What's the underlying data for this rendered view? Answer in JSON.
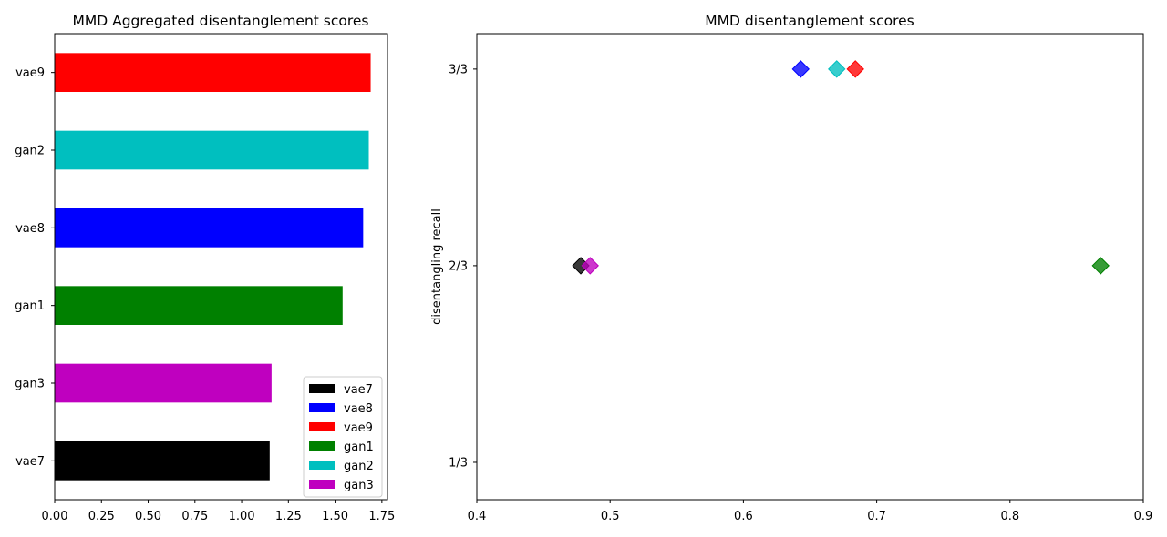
{
  "chart_data": [
    {
      "type": "bar",
      "orientation": "horizontal",
      "title": "MMD Aggregated disentanglement scores",
      "xlabel": "",
      "ylabel": "",
      "categories": [
        "vae7",
        "gan3",
        "gan1",
        "vae8",
        "gan2",
        "vae9"
      ],
      "values": [
        1.15,
        1.16,
        1.54,
        1.65,
        1.68,
        1.69
      ],
      "colors": [
        "#000000",
        "#bf00bf",
        "#008000",
        "#0000ff",
        "#00bfbf",
        "#ff0000"
      ],
      "xlim": [
        0,
        1.78
      ],
      "xticks": [
        0.0,
        0.25,
        0.5,
        0.75,
        1.0,
        1.25,
        1.5,
        1.75
      ],
      "xtick_labels": [
        "0.00",
        "0.25",
        "0.50",
        "0.75",
        "1.00",
        "1.25",
        "1.50",
        "1.75"
      ],
      "legend": {
        "placement": "lower-right",
        "entries": [
          {
            "label": "vae7",
            "color": "#000000"
          },
          {
            "label": "vae8",
            "color": "#0000ff"
          },
          {
            "label": "vae9",
            "color": "#ff0000"
          },
          {
            "label": "gan1",
            "color": "#008000"
          },
          {
            "label": "gan2",
            "color": "#00bfbf"
          },
          {
            "label": "gan3",
            "color": "#bf00bf"
          }
        ]
      },
      "grid": false
    },
    {
      "type": "scatter",
      "title": "MMD disentanglement scores",
      "xlabel": "",
      "ylabel": "disentangling recall",
      "marker": "diamond",
      "series": [
        {
          "name": "vae7",
          "x": 0.478,
          "y": 0.6667,
          "color": "#000000"
        },
        {
          "name": "vae8",
          "x": 0.643,
          "y": 1.0,
          "color": "#0000ff"
        },
        {
          "name": "vae9",
          "x": 0.684,
          "y": 1.0,
          "color": "#ff0000"
        },
        {
          "name": "gan1",
          "x": 0.868,
          "y": 0.6667,
          "color": "#008000"
        },
        {
          "name": "gan2",
          "x": 0.67,
          "y": 1.0,
          "color": "#00bfbf"
        },
        {
          "name": "gan3",
          "x": 0.485,
          "y": 0.6667,
          "color": "#bf00bf"
        }
      ],
      "xlim": [
        0.4,
        0.9
      ],
      "xticks": [
        0.4,
        0.5,
        0.6,
        0.7,
        0.8,
        0.9
      ],
      "xtick_labels": [
        "0.4",
        "0.5",
        "0.6",
        "0.7",
        "0.8",
        "0.9"
      ],
      "ylim": [
        0.27,
        1.06
      ],
      "yticks": [
        0.3333,
        0.6667,
        1.0
      ],
      "ytick_labels": [
        "1/3",
        "2/3",
        "3/3"
      ],
      "grid": false
    }
  ]
}
